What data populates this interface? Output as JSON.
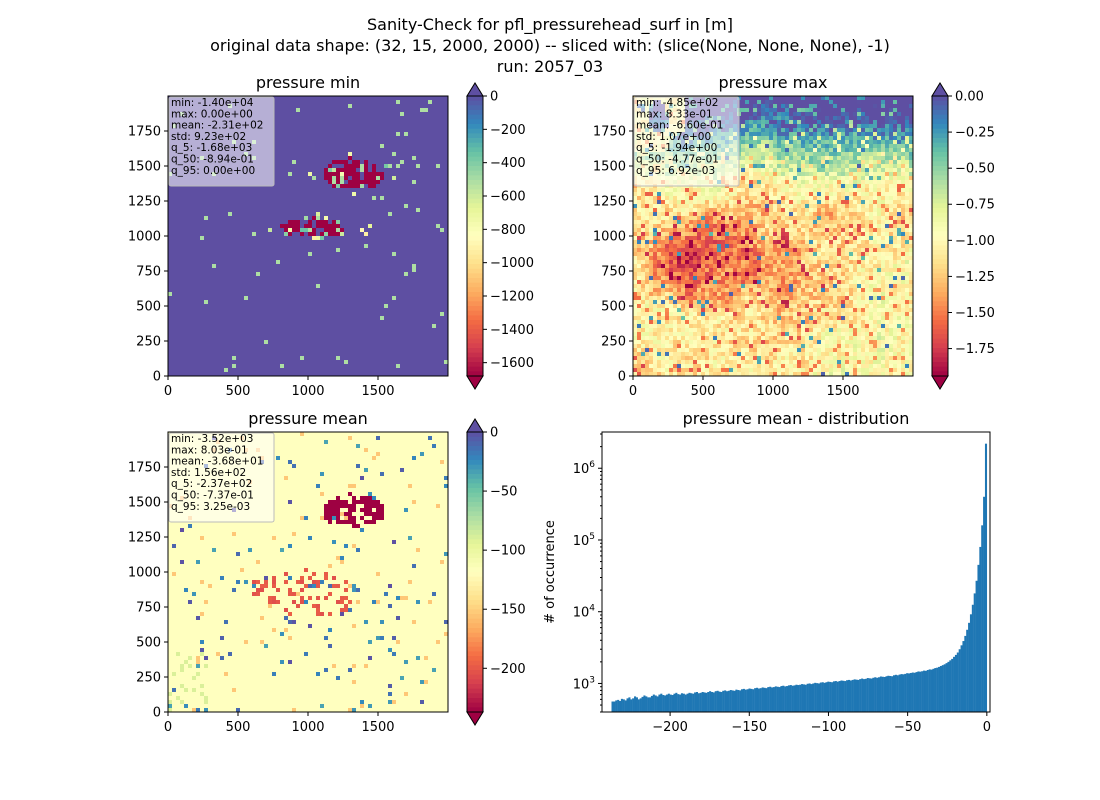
{
  "figure": {
    "title_lines": [
      "Sanity-Check for pfl_pressurehead_surf in [m]",
      "original data shape: (32, 15, 2000, 2000) -- sliced with: (slice(None, None, None), -1)",
      "run: 2057_03"
    ]
  },
  "chart_data": [
    {
      "type": "heatmap",
      "title": "pressure min",
      "xlim": [
        0,
        2000
      ],
      "ylim": [
        0,
        2000
      ],
      "x_ticks": [
        "0",
        "500",
        "1000",
        "1500"
      ],
      "y_ticks": [
        "0",
        "250",
        "500",
        "750",
        "1000",
        "1250",
        "1500",
        "1750"
      ],
      "colorbar": {
        "colormap": "Spectral",
        "range": [
          -1680,
          0
        ],
        "ticks": [
          "0",
          "−200",
          "−400",
          "−600",
          "−800",
          "−1000",
          "−1200",
          "−1400",
          "−1600"
        ],
        "tick_values": [
          0,
          -200,
          -400,
          -600,
          -800,
          -1000,
          -1200,
          -1400,
          -1600
        ],
        "extend": "both"
      },
      "stats": [
        "min: -1.40e+04",
        "max: 0.00e+00",
        "mean: -2.31e+02",
        "std: 9.23e+02",
        "q_5: -1.68e+03",
        "q_50: -8.94e-01",
        "q_95: 0.00e+00"
      ]
    },
    {
      "type": "heatmap",
      "title": "pressure max",
      "xlim": [
        0,
        2000
      ],
      "ylim": [
        0,
        2000
      ],
      "x_ticks": [
        "0",
        "500",
        "1000",
        "1500"
      ],
      "y_ticks": [
        "0",
        "250",
        "500",
        "750",
        "1000",
        "1250",
        "1500",
        "1750"
      ],
      "colorbar": {
        "colormap": "Spectral",
        "range": [
          -1.94,
          0.0
        ],
        "ticks": [
          "0.00",
          "−0.25",
          "−0.50",
          "−0.75",
          "−1.00",
          "−1.25",
          "−1.50",
          "−1.75"
        ],
        "tick_values": [
          0.0,
          -0.25,
          -0.5,
          -0.75,
          -1.0,
          -1.25,
          -1.5,
          -1.75
        ],
        "extend": "both"
      },
      "stats": [
        "min: -4.85e+02",
        "max: 8.33e-01",
        "mean: -6.60e-01",
        "std: 1.07e+00",
        "q_5: -1.94e+00",
        "q_50: -4.77e-01",
        "q_95: 6.92e-03"
      ]
    },
    {
      "type": "heatmap",
      "title": "pressure mean",
      "xlim": [
        0,
        2000
      ],
      "ylim": [
        0,
        2000
      ],
      "x_ticks": [
        "0",
        "500",
        "1000",
        "1500"
      ],
      "y_ticks": [
        "0",
        "250",
        "500",
        "750",
        "1000",
        "1250",
        "1500",
        "1750"
      ],
      "colorbar": {
        "colormap": "Spectral",
        "range": [
          -237,
          0
        ],
        "ticks": [
          "0",
          "−50",
          "−100",
          "−150",
          "−200"
        ],
        "tick_values": [
          0,
          -50,
          -100,
          -150,
          -200
        ],
        "extend": "both"
      },
      "stats": [
        "min: -3.52e+03",
        "max: 8.03e-01",
        "mean: -3.68e+01",
        "std: 1.56e+02",
        "q_5: -2.37e+02",
        "q_50: -7.37e-01",
        "q_95: 3.25e-03"
      ]
    },
    {
      "type": "bar",
      "title": "pressure mean - distribution",
      "ylabel": "# of occurrence",
      "xlabel": "",
      "yscale": "log",
      "xlim": [
        -243,
        2
      ],
      "ylim": [
        400,
        3200000
      ],
      "x_ticks": [
        "−200",
        "−150",
        "−100",
        "−50",
        "0"
      ],
      "x_tick_values": [
        -200,
        -150,
        -100,
        -50,
        0
      ],
      "y_ticks": [
        "10^3",
        "10^4",
        "10^5",
        "10^6"
      ],
      "y_tick_values": [
        1000,
        10000,
        100000,
        1000000
      ],
      "bin_range": [
        -237,
        0
      ],
      "bins": 200,
      "color": "#1f77b4",
      "values": [
        560,
        560,
        580,
        590,
        570,
        610,
        600,
        580,
        620,
        640,
        600,
        620,
        660,
        640,
        600,
        620,
        650,
        680,
        660,
        640,
        640,
        670,
        700,
        680,
        660,
        700,
        720,
        690,
        680,
        700,
        720,
        700,
        690,
        720,
        740,
        710,
        700,
        730,
        720,
        700,
        720,
        740,
        730,
        720,
        750,
        760,
        730,
        740,
        760,
        750,
        740,
        760,
        780,
        760,
        750,
        780,
        790,
        770,
        760,
        790,
        800,
        780,
        790,
        810,
        800,
        790,
        820,
        810,
        800,
        830,
        840,
        820,
        830,
        850,
        840,
        830,
        860,
        870,
        850,
        860,
        880,
        870,
        860,
        890,
        900,
        880,
        890,
        910,
        900,
        890,
        920,
        930,
        910,
        920,
        940,
        950,
        930,
        940,
        960,
        950,
        960,
        980,
        970,
        960,
        990,
        1000,
        980,
        1000,
        1020,
        1010,
        1000,
        1030,
        1040,
        1020,
        1040,
        1060,
        1050,
        1040,
        1070,
        1080,
        1060,
        1080,
        1100,
        1090,
        1080,
        1110,
        1120,
        1100,
        1120,
        1140,
        1130,
        1120,
        1150,
        1170,
        1150,
        1160,
        1190,
        1180,
        1170,
        1200,
        1220,
        1200,
        1220,
        1250,
        1240,
        1230,
        1260,
        1280,
        1270,
        1260,
        1300,
        1320,
        1300,
        1330,
        1350,
        1340,
        1360,
        1390,
        1380,
        1400,
        1420,
        1410,
        1440,
        1470,
        1460,
        1480,
        1510,
        1500,
        1540,
        1570,
        1560,
        1600,
        1640,
        1660,
        1700,
        1750,
        1800,
        1850,
        1920,
        2000,
        2100,
        2200,
        2350,
        2500,
        2700,
        3000,
        3400,
        3900,
        4600,
        5600,
        7000,
        9200,
        12500,
        18000,
        27000,
        45000,
        80000,
        160000,
        400000,
        2200000
      ]
    }
  ]
}
